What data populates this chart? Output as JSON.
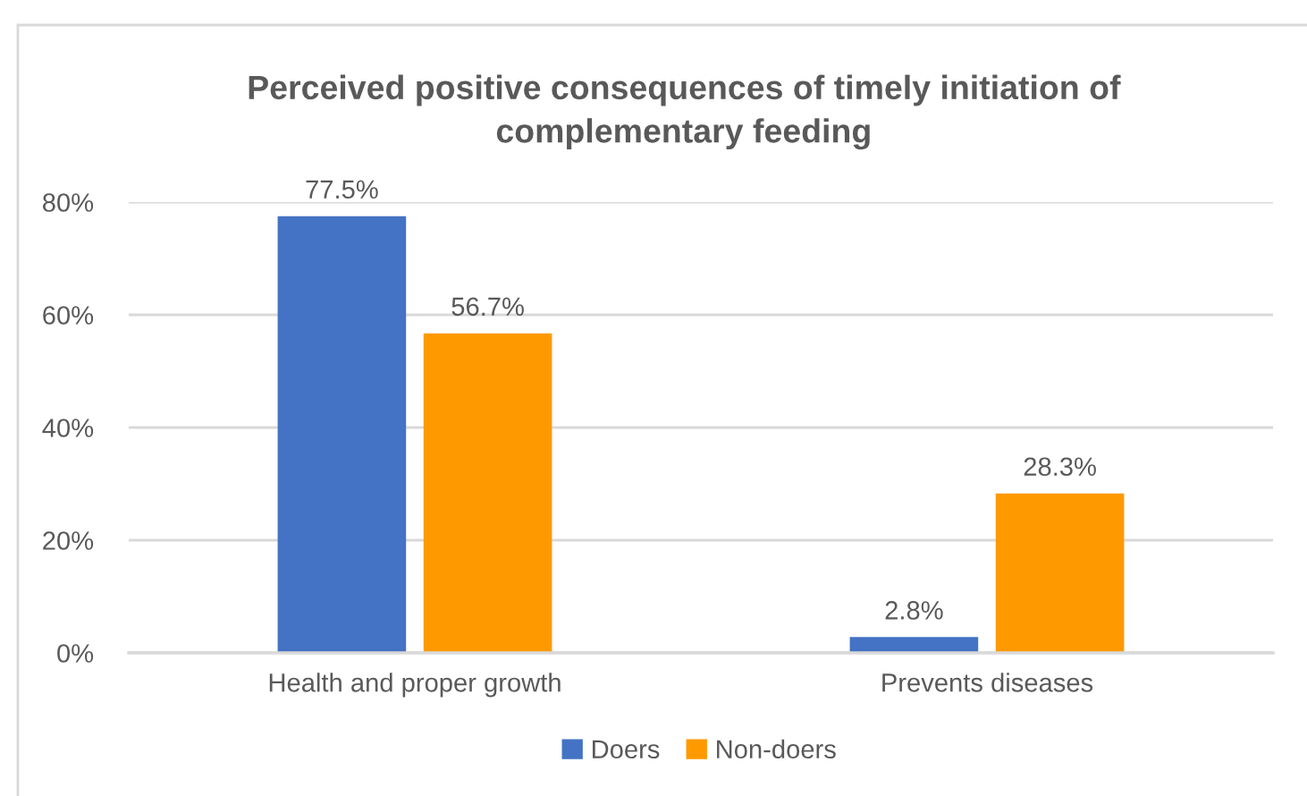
{
  "chart_data": {
    "type": "bar",
    "title": "Perceived positive consequences of timely initiation of\ncomplementary feeding",
    "categories": [
      "Health and proper growth",
      "Prevents diseases"
    ],
    "series": [
      {
        "name": "Doers",
        "color": "#4472c4",
        "values": [
          77.5,
          2.8
        ],
        "value_labels": [
          "77.5%",
          "2.8%"
        ]
      },
      {
        "name": "Non-doers",
        "color": "#ff9900",
        "values": [
          56.7,
          28.3
        ],
        "value_labels": [
          "56.7%",
          "28.3%"
        ]
      }
    ],
    "ylim": [
      0,
      80
    ],
    "yticks": [
      {
        "value": 0,
        "label": "0%"
      },
      {
        "value": 20,
        "label": "20%"
      },
      {
        "value": 40,
        "label": "40%"
      },
      {
        "value": 60,
        "label": "60%"
      },
      {
        "value": 80,
        "label": "80%"
      }
    ],
    "grid": "y",
    "legend": "bottom"
  }
}
